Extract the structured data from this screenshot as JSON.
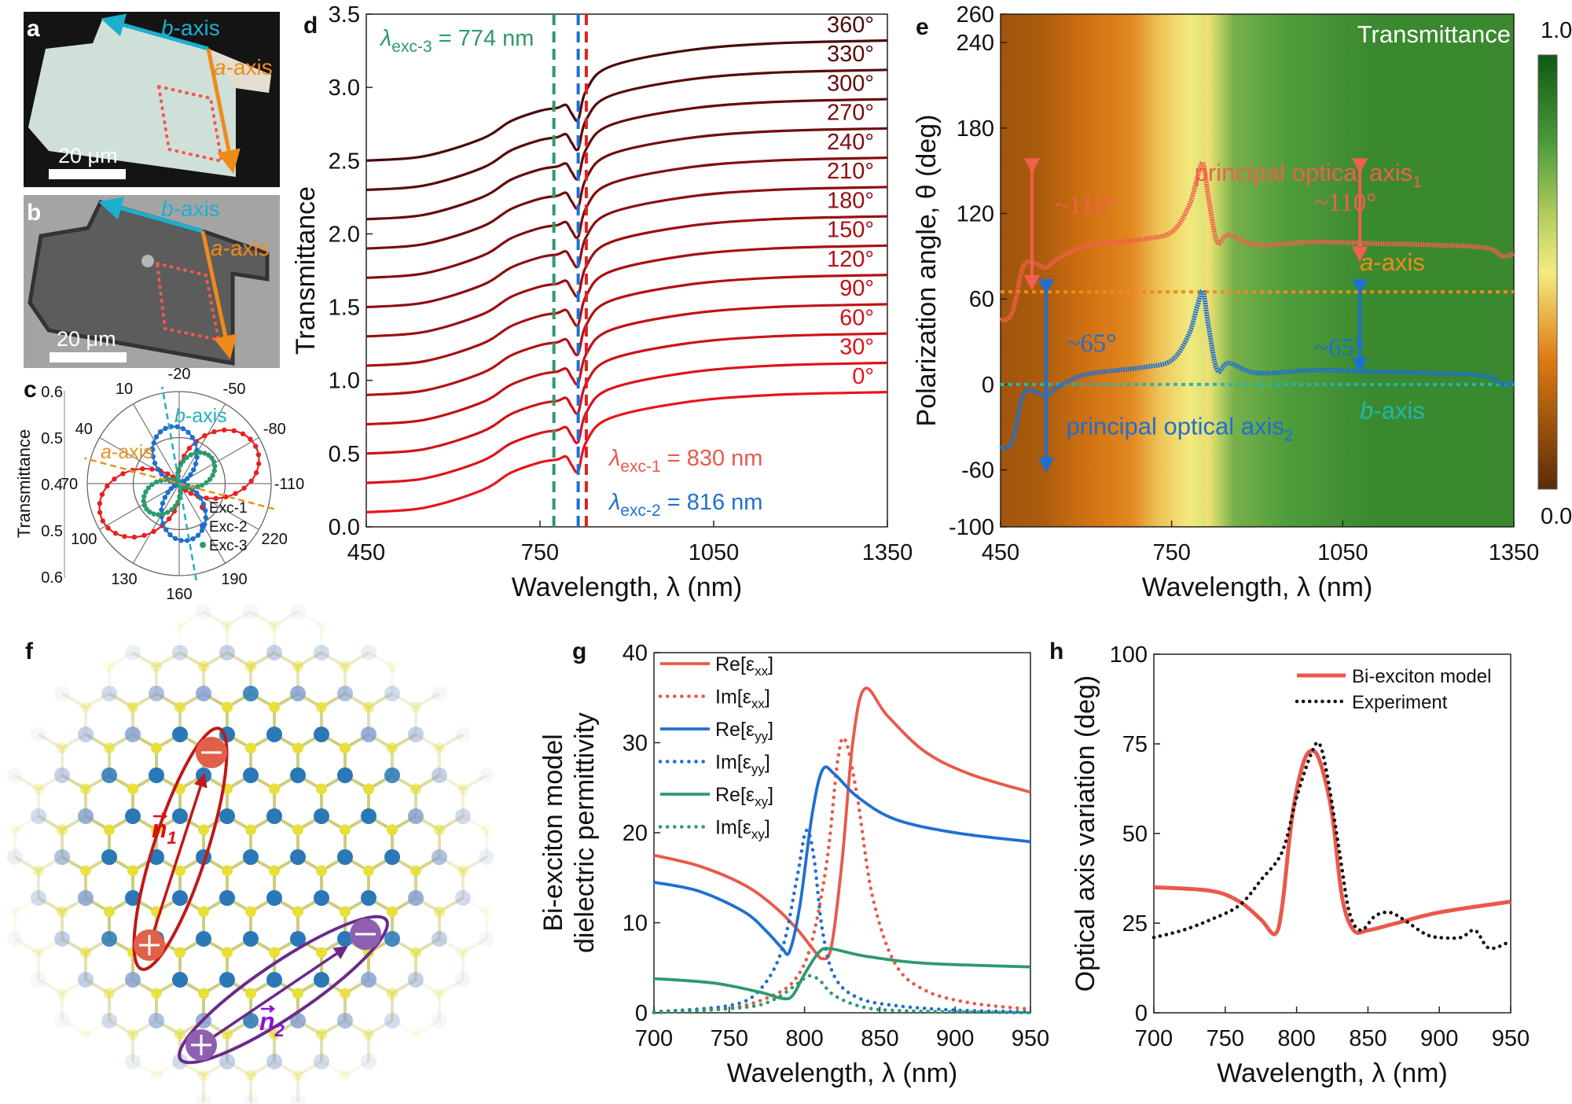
{
  "figure": {
    "a": {
      "label": "a",
      "b_letter": "b",
      "a_letter": "a",
      "axis_suffix": "-axis",
      "scale_bar": "20 μm"
    },
    "b": {
      "label": "b",
      "b_letter": "b",
      "a_letter": "a",
      "axis_suffix": "-axis",
      "scale_bar": "20 μm"
    },
    "f": {
      "label": "f",
      "n1": "n",
      "n1_sub": "1",
      "n2": "n",
      "n2_sub": "2"
    }
  },
  "colors": {
    "red": "#e8594a",
    "blue": "#1f6fd0",
    "green": "#2e9a6a",
    "orange": "#f08a1a",
    "teal": "#20b0c0",
    "purple": "#6a2a8a"
  },
  "chart_data": [
    {
      "panel_label": "c",
      "type": "polar",
      "ylabel": "Transmittance",
      "radial_range": [
        0.4,
        0.6
      ],
      "radial_ticks": [
        "0.6",
        "0.5",
        "0.4",
        "0.5",
        "0.6"
      ],
      "angle_ticks": [
        "-20",
        "-50",
        "-80",
        "-110",
        "220",
        "190",
        "160",
        "130",
        "100",
        "70",
        "40",
        "10"
      ],
      "series": [
        {
          "name": "Exc-1",
          "color": "#e82020",
          "orientation_deg": -85,
          "min": 0.4,
          "max": 0.585
        },
        {
          "name": "Exc-2",
          "color": "#1f6fd0",
          "orientation_deg": -12,
          "min": 0.4,
          "max": 0.525
        },
        {
          "name": "Exc-3",
          "color": "#2e9a6a",
          "orientation_deg": -72,
          "min": 0.4,
          "max": 0.49
        }
      ],
      "axes_marks": [
        {
          "letter": "a",
          "suffix": "-axis",
          "angle_deg": 55,
          "color": "#e8921e"
        },
        {
          "letter": "b",
          "suffix": "-axis",
          "angle_deg": -10,
          "color": "#20b0c0"
        }
      ]
    },
    {
      "panel_label": "d",
      "type": "line",
      "xlabel": "Wavelength, λ (nm)",
      "ylabel": "Transmittance",
      "xlim": [
        450,
        1350
      ],
      "ylim": [
        0,
        3.5
      ],
      "xticks": [
        "450",
        "750",
        "1050",
        "1350"
      ],
      "yticks": [
        "0.0",
        "0.5",
        "1.0",
        "1.5",
        "2.0",
        "2.5",
        "3.0",
        "3.5"
      ],
      "x": [
        450,
        550,
        650,
        700,
        750,
        780,
        795,
        805,
        816,
        830,
        870,
        1000,
        1150,
        1350
      ],
      "series": [
        {
          "name": "0°",
          "values": [
            0.1,
            0.13,
            0.25,
            0.37,
            0.44,
            0.46,
            0.48,
            0.42,
            0.38,
            0.58,
            0.74,
            0.85,
            0.9,
            0.92
          ]
        },
        {
          "name": "30°",
          "values": [
            0.3,
            0.33,
            0.45,
            0.57,
            0.64,
            0.66,
            0.68,
            0.62,
            0.58,
            0.78,
            0.94,
            1.05,
            1.1,
            1.12
          ]
        },
        {
          "name": "60°",
          "values": [
            0.5,
            0.53,
            0.65,
            0.77,
            0.84,
            0.86,
            0.88,
            0.82,
            0.78,
            0.98,
            1.14,
            1.25,
            1.3,
            1.32
          ]
        },
        {
          "name": "90°",
          "values": [
            0.7,
            0.73,
            0.85,
            0.97,
            1.04,
            1.06,
            1.08,
            1.02,
            0.98,
            1.18,
            1.34,
            1.45,
            1.5,
            1.52
          ]
        },
        {
          "name": "120°",
          "values": [
            0.9,
            0.93,
            1.05,
            1.17,
            1.24,
            1.26,
            1.28,
            1.22,
            1.18,
            1.38,
            1.54,
            1.65,
            1.7,
            1.72
          ]
        },
        {
          "name": "150°",
          "values": [
            1.1,
            1.13,
            1.25,
            1.37,
            1.44,
            1.46,
            1.48,
            1.42,
            1.38,
            1.58,
            1.74,
            1.85,
            1.9,
            1.92
          ]
        },
        {
          "name": "180°",
          "values": [
            1.3,
            1.33,
            1.45,
            1.57,
            1.64,
            1.66,
            1.68,
            1.62,
            1.58,
            1.78,
            1.94,
            2.05,
            2.1,
            2.12
          ]
        },
        {
          "name": "210°",
          "values": [
            1.5,
            1.53,
            1.65,
            1.77,
            1.84,
            1.86,
            1.88,
            1.82,
            1.78,
            1.98,
            2.14,
            2.25,
            2.3,
            2.32
          ]
        },
        {
          "name": "240°",
          "values": [
            1.7,
            1.73,
            1.85,
            1.97,
            2.04,
            2.06,
            2.08,
            2.02,
            1.98,
            2.18,
            2.34,
            2.45,
            2.5,
            2.52
          ]
        },
        {
          "name": "270°",
          "values": [
            1.9,
            1.93,
            2.05,
            2.17,
            2.24,
            2.26,
            2.28,
            2.22,
            2.18,
            2.38,
            2.54,
            2.65,
            2.7,
            2.72
          ]
        },
        {
          "name": "300°",
          "values": [
            2.1,
            2.13,
            2.25,
            2.37,
            2.44,
            2.46,
            2.48,
            2.42,
            2.38,
            2.58,
            2.74,
            2.85,
            2.9,
            2.92
          ]
        },
        {
          "name": "330°",
          "values": [
            2.3,
            2.33,
            2.45,
            2.57,
            2.64,
            2.66,
            2.68,
            2.62,
            2.58,
            2.78,
            2.94,
            3.05,
            3.1,
            3.12
          ]
        },
        {
          "name": "360°",
          "values": [
            2.5,
            2.53,
            2.65,
            2.77,
            2.84,
            2.86,
            2.88,
            2.82,
            2.78,
            2.98,
            3.14,
            3.25,
            3.3,
            3.32
          ]
        }
      ],
      "vlines": [
        {
          "x": 774,
          "color": "#2e9a6a"
        },
        {
          "x": 816,
          "color": "#1f6fd0"
        },
        {
          "x": 830,
          "color": "#e02020"
        }
      ],
      "annotations": [
        {
          "symbol": "λ",
          "sub": "exc-3",
          "text": " = 774 nm",
          "color": "#2e9a6a"
        },
        {
          "symbol": "λ",
          "sub": "exc-1",
          "text": " = 830 nm",
          "color": "#e8594a"
        },
        {
          "symbol": "λ",
          "sub": "exc-2",
          "text": " = 816 nm",
          "color": "#1f6fd0"
        }
      ]
    },
    {
      "panel_label": "e",
      "type": "heatmap",
      "xlabel": "Wavelength, λ (nm)",
      "ylabel": "Polarization angle, θ (deg)",
      "xlim": [
        450,
        1350
      ],
      "ylim": [
        -100,
        260
      ],
      "xticks": [
        "450",
        "750",
        "1050",
        "1350"
      ],
      "yticks": [
        "-100",
        "-60",
        "0",
        "60",
        "120",
        "180",
        "240",
        "260"
      ],
      "colorbar": {
        "title": "Transmittance",
        "min_label": "0.05",
        "max_label": "1.00",
        "range": [
          0.05,
          1.0
        ]
      },
      "transmittance_profile": {
        "x": [
          450,
          520,
          600,
          680,
          730,
          780,
          805,
          815,
          830,
          860,
          950,
          1100,
          1350
        ],
        "values": [
          0.2,
          0.22,
          0.3,
          0.36,
          0.46,
          0.52,
          0.56,
          0.5,
          0.62,
          0.74,
          0.8,
          0.86,
          0.86
        ]
      },
      "series": [
        {
          "name": "principal optical axis",
          "sub": "1",
          "color": "#f0604a",
          "x": [
            450,
            470,
            490,
            510,
            530,
            550,
            600,
            700,
            750,
            780,
            795,
            805,
            815,
            830,
            850,
            900,
            1000,
            1100,
            1200,
            1300,
            1330,
            1350
          ],
          "y": [
            45,
            50,
            83,
            85,
            82,
            88,
            97,
            102,
            107,
            125,
            145,
            155,
            130,
            100,
            105,
            98,
            100,
            99,
            98,
            96,
            90,
            92
          ]
        },
        {
          "name": "principal optical axis",
          "sub": "2",
          "color": "#1f6fd0",
          "x": [
            450,
            470,
            490,
            510,
            530,
            550,
            600,
            700,
            750,
            780,
            795,
            805,
            815,
            830,
            850,
            900,
            1000,
            1100,
            1200,
            1300,
            1330,
            1350
          ],
          "y": [
            -45,
            -40,
            -7,
            -5,
            -8,
            -2,
            7,
            12,
            17,
            35,
            55,
            65,
            40,
            10,
            15,
            8,
            10,
            9,
            8,
            6,
            0,
            2
          ]
        }
      ],
      "reference_lines": [
        {
          "letter": "a",
          "suffix": "-axis",
          "y": 65,
          "color": "#f08a1a"
        },
        {
          "letter": "b",
          "suffix": "-axis",
          "y": 0,
          "color": "#20b8b0"
        }
      ],
      "arrow_labels": [
        "~110°",
        "~65°",
        "~110°",
        "~65°"
      ]
    },
    {
      "panel_label": "g",
      "type": "line",
      "xlabel": "Wavelength, λ (nm)",
      "ylabel": [
        "Bi-exciton model",
        "dielectric permittivity"
      ],
      "xlim": [
        700,
        950
      ],
      "ylim": [
        0,
        40
      ],
      "xticks": [
        "700",
        "750",
        "800",
        "850",
        "900",
        "950"
      ],
      "yticks": [
        "0",
        "10",
        "20",
        "30",
        "40"
      ],
      "legend": "top-left",
      "series": [
        {
          "prefix": "Re[ε",
          "sub": "xx",
          "suffix": "]",
          "color": "#e8594a",
          "style": "solid",
          "x": [
            700,
            730,
            760,
            780,
            795,
            805,
            812,
            818,
            825,
            832,
            840,
            855,
            880,
            910,
            950
          ],
          "y": [
            17.5,
            16.3,
            14.2,
            11.8,
            9.3,
            7.2,
            6.0,
            7.5,
            17,
            30,
            36,
            33,
            29,
            26.5,
            24.5
          ]
        },
        {
          "prefix": "Im[ε",
          "sub": "xx",
          "suffix": "]",
          "color": "#e8594a",
          "style": "dotted",
          "x": [
            700,
            750,
            780,
            795,
            805,
            815,
            822,
            827,
            835,
            845,
            860,
            880,
            910,
            950
          ],
          "y": [
            0.1,
            0.5,
            2,
            4,
            8,
            17,
            28,
            30.3,
            24,
            13,
            5.5,
            2.5,
            1.1,
            0.4
          ]
        },
        {
          "prefix": "Re[ε",
          "sub": "yy",
          "suffix": "]",
          "color": "#1f6fd0",
          "style": "solid",
          "x": [
            700,
            730,
            760,
            775,
            785,
            790,
            797,
            805,
            812,
            820,
            835,
            860,
            900,
            950
          ],
          "y": [
            14.5,
            13.5,
            11.2,
            9,
            7.2,
            6.8,
            12,
            22,
            27,
            26.5,
            24,
            21.5,
            20,
            19
          ]
        },
        {
          "prefix": "Im[ε",
          "sub": "yy",
          "suffix": "]",
          "color": "#1f6fd0",
          "style": "dotted",
          "x": [
            700,
            750,
            770,
            785,
            795,
            801,
            806,
            812,
            820,
            835,
            860,
            900,
            950
          ],
          "y": [
            0.1,
            0.8,
            2.5,
            7,
            15,
            20.2,
            17.5,
            9,
            4,
            1.7,
            0.8,
            0.3,
            0.1
          ]
        },
        {
          "prefix": "Re[ε",
          "sub": "xy",
          "suffix": "]",
          "color": "#2e9a6a",
          "style": "solid",
          "x": [
            700,
            740,
            770,
            785,
            792,
            800,
            810,
            818,
            840,
            880,
            950
          ],
          "y": [
            3.8,
            3.3,
            2.3,
            1.6,
            1.9,
            4.3,
            6.8,
            7.1,
            6.3,
            5.5,
            5.1
          ]
        },
        {
          "prefix": "Im[ε",
          "sub": "xy",
          "suffix": "]",
          "color": "#2e9a6a",
          "style": "dotted",
          "x": [
            700,
            760,
            780,
            795,
            803,
            810,
            820,
            840,
            870,
            950
          ],
          "y": [
            0.0,
            0.6,
            1.5,
            3.2,
            4.1,
            3.6,
            1.9,
            0.6,
            0.2,
            0.0
          ]
        }
      ]
    },
    {
      "panel_label": "h",
      "type": "line",
      "xlabel": "Wavelength, λ (nm)",
      "ylabel": "Optical axis variation (deg)",
      "xlim": [
        700,
        950
      ],
      "ylim": [
        0,
        100
      ],
      "xticks": [
        "700",
        "750",
        "800",
        "850",
        "900",
        "950"
      ],
      "yticks": [
        "0",
        "25",
        "50",
        "75",
        "100"
      ],
      "legend": "top-right",
      "series": [
        {
          "name": "Bi-exciton model",
          "color": "#e8594a",
          "style": "solid",
          "x": [
            700,
            740,
            760,
            775,
            785,
            790,
            797,
            805,
            812,
            818,
            825,
            832,
            840,
            850,
            870,
            900,
            950
          ],
          "y": [
            35,
            34,
            31,
            26,
            22,
            30,
            55,
            70,
            73,
            68,
            55,
            32,
            23,
            23,
            25,
            28,
            31
          ]
        },
        {
          "name": "Experiment",
          "color": "#111111",
          "style": "dotted",
          "x": [
            700,
            720,
            740,
            760,
            775,
            790,
            800,
            810,
            816,
            822,
            830,
            837,
            845,
            855,
            865,
            875,
            890,
            900,
            915,
            925,
            935,
            950
          ],
          "y": [
            21,
            23,
            26,
            30,
            37,
            45,
            60,
            72,
            75,
            65,
            45,
            28,
            23,
            27,
            28,
            26,
            22,
            21,
            21,
            23,
            18,
            20
          ]
        }
      ]
    }
  ]
}
